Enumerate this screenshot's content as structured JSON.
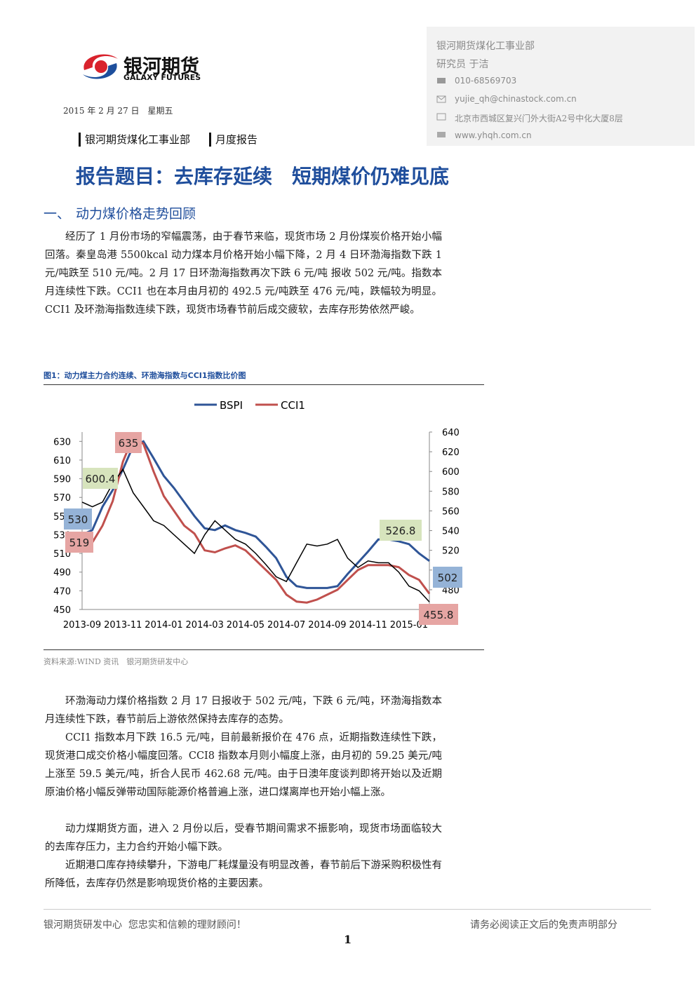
{
  "header": {
    "logo_cn": "银河期货",
    "logo_en": "GALAXY FUTURES",
    "date": "2015 年 2 月 27 日　星期五",
    "department": "银河期货煤化工事业部",
    "report_type": "月度报告"
  },
  "contact": {
    "department": "银河期货煤化工事业部",
    "analyst": "研究员 于洁",
    "phone": "010-68569703",
    "email": "yujie_qh@chinastock.com.cn",
    "address": "北京市西城区复兴门外大街A2号中化大厦8层",
    "website": "www.yhqh.com.cn"
  },
  "title": "报告题目：去库存延续　短期煤价仍难见底",
  "section": {
    "number": "一、",
    "heading": "动力煤价格走势回顾"
  },
  "intro": "经历了 1 月份市场的窄幅震荡，由于春节来临，现货市场 2 月份煤炭价格开始小幅回落。秦皇岛港 5500kcal 动力煤本月价格开始小幅下降，2 月 4 日环渤海指数下跌 1 元/吨跌至 510 元/吨。2 月 17 日环渤海指数再次下跌 6 元/吨 报收 502 元/吨。指数本月连续性下跌。CCI1 也在本月由月初的 492.5 元/吨跌至 476 元/吨，跌幅较为明显。CCI1 及环渤海指数连续下跌，现货市场春节前后成交疲软，去库存形势依然严峻。",
  "figure": {
    "caption": "图1：动力煤主力合约连续、环渤海指数与CCI1指数比价图",
    "source": "资料来源:WIND 资讯　银河期货研发中心"
  },
  "chart_data": {
    "type": "line",
    "x": [
      "2013-09",
      null,
      null,
      null,
      "2013-11",
      null,
      null,
      null,
      "2014-01",
      null,
      null,
      null,
      "2014-03",
      null,
      null,
      null,
      "2014-05",
      null,
      null,
      null,
      "2014-07",
      null,
      null,
      null,
      "2014-09",
      null,
      null,
      null,
      "2014-11",
      null,
      null,
      null,
      "2015-01",
      null,
      null
    ],
    "series": [
      {
        "name": "BSPI",
        "color": "#2f5597",
        "values": [
          530,
          535,
          560,
          578,
          600,
          625,
          630,
          612,
          593,
          580,
          565,
          550,
          537,
          535,
          540,
          535,
          532,
          528,
          517,
          505,
          485,
          475,
          473,
          473,
          473,
          475,
          488,
          500,
          512,
          525,
          525,
          523,
          520,
          510,
          502
        ]
      },
      {
        "name": "CCI1",
        "color": "#c0504d",
        "axis": "y2",
        "values": [
          519,
          528,
          545,
          570,
          610,
          635,
          628,
          600,
          575,
          560,
          545,
          537,
          520,
          518,
          522,
          525,
          520,
          510,
          500,
          490,
          475,
          468,
          467,
          470,
          475,
          480,
          490,
          500,
          505,
          505,
          505,
          503,
          495,
          490,
          476
        ]
      },
      {
        "color": "#000000",
        "values": [
          565,
          560,
          565,
          585,
          600,
          575,
          560,
          545,
          540,
          530,
          520,
          510,
          530,
          545,
          535,
          525,
          520,
          510,
          498,
          485,
          480,
          500,
          520,
          518,
          520,
          525,
          505,
          495,
          502,
          500,
          500,
          490,
          475,
          470,
          458
        ]
      }
    ],
    "ylim": [
      450,
      640
    ],
    "yticks": [
      450,
      470,
      490,
      510,
      530,
      550,
      570,
      590,
      610,
      630
    ],
    "y2lim": [
      460,
      640
    ],
    "y2ticks": [
      480,
      500,
      520,
      540,
      560,
      580,
      600,
      620,
      640
    ],
    "legend": "top",
    "annotations": [
      {
        "value": 635,
        "color": "#e6a5a3"
      },
      {
        "value": 600.4,
        "color": "#d7e4bd"
      },
      {
        "value": 530,
        "color": "#95b3d7"
      },
      {
        "value": 519,
        "color": "#e6a5a3"
      },
      {
        "value": 526.8,
        "color": "#d7e4bd"
      },
      {
        "value": 502,
        "color": "#95b3d7"
      },
      {
        "value": 455.8,
        "color": "#e6a5a3"
      }
    ]
  },
  "analysis": [
    "环渤海动力煤价格指数 2 月 17 日报收于 502 元/吨，下跌 6 元/吨，环渤海指数本月连续性下跌，春节前后上游依然保持去库存的态势。",
    "CCI1 指数本月下跌 16.5 元/吨，目前最新报价在 476 点，近期指数连续性下跌，现货港口成交价格小幅度回落。CCI8 指数本月则小幅度上涨，由月初的 59.25 美元/吨上涨至 59.5 美元/吨，折合人民币 462.68 元/吨。由于日澳年度谈判即将开始以及近期原油价格小幅反弹带动国际能源价格普遍上涨，进口煤离岸也开始小幅上涨。",
    "动力煤期货方面，进入 2 月份以后，受春节期间需求不振影响，现货市场面临较大的去库存压力，主力合约开始小幅下跌。",
    "近期港口库存持续攀升，下游电厂耗煤量没有明显改善，春节前后下游采购积极性有所降低，去库存仍然是影响现货价格的主要因素。"
  ],
  "footer": {
    "left": "银河期货研发中心  您忠实和信赖的理财顾问！",
    "right": "请务必阅读正文后的免责声明部分",
    "page": "1"
  }
}
